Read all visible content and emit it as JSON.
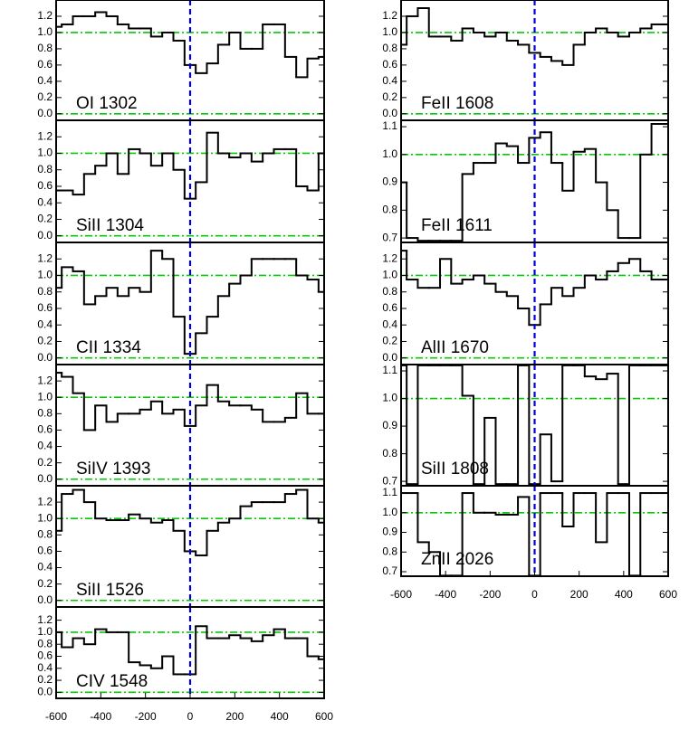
{
  "chart_data": [
    {
      "type": "line",
      "label": "OI 1302",
      "x": [
        -600,
        -550,
        -500,
        -450,
        -400,
        -350,
        -300,
        -250,
        -200,
        -150,
        -100,
        -50,
        0,
        50,
        100,
        150,
        200,
        250,
        300,
        350,
        400,
        450,
        500,
        550,
        600
      ],
      "values": [
        1.07,
        1.1,
        1.2,
        1.2,
        1.25,
        1.2,
        1.1,
        1.05,
        1.05,
        0.95,
        1.0,
        0.9,
        0.6,
        0.5,
        0.62,
        0.85,
        1.0,
        0.8,
        0.8,
        1.1,
        1.1,
        0.7,
        0.45,
        0.68,
        0.7
      ],
      "color": "#000000",
      "xlim": [
        -600,
        600
      ],
      "ylim": [
        -0.08,
        1.4
      ],
      "yticks": [
        {
          "value": 0,
          "label": "0.0"
        },
        0.2,
        0.4,
        0.6,
        0.8,
        {
          "value": 1,
          "label": "1.0"
        },
        1.2
      ],
      "hlines": [
        0,
        1
      ],
      "hline_color": "#00cc00",
      "vline": 0,
      "vline_color": "#0000dd"
    },
    {
      "type": "line",
      "label": "SiII 1304",
      "x": [
        -600,
        -550,
        -500,
        -450,
        -400,
        -350,
        -300,
        -250,
        -200,
        -150,
        -100,
        -50,
        0,
        50,
        100,
        150,
        200,
        250,
        300,
        350,
        400,
        450,
        500,
        550,
        600
      ],
      "values": [
        0.55,
        0.55,
        0.5,
        0.75,
        0.85,
        1.0,
        0.75,
        1.05,
        1.0,
        0.85,
        1.0,
        0.8,
        0.45,
        0.65,
        1.25,
        1.0,
        0.95,
        1.0,
        0.9,
        1.0,
        1.05,
        1.05,
        0.6,
        0.55,
        1.0
      ],
      "color": "#000000",
      "xlim": [
        -600,
        600
      ],
      "ylim": [
        -0.08,
        1.4
      ],
      "yticks": [
        {
          "value": 0,
          "label": "0.0"
        },
        0.2,
        0.4,
        0.6,
        0.8,
        {
          "value": 1,
          "label": "1.0"
        },
        1.2
      ],
      "hlines": [
        0,
        1
      ],
      "hline_color": "#00cc00",
      "vline": 0,
      "vline_color": "#0000dd"
    },
    {
      "type": "line",
      "label": "CII 1334",
      "x": [
        -600,
        -550,
        -500,
        -450,
        -400,
        -350,
        -300,
        -250,
        -200,
        -150,
        -100,
        -50,
        0,
        50,
        100,
        150,
        200,
        250,
        300,
        350,
        400,
        450,
        500,
        550,
        600
      ],
      "values": [
        0.85,
        1.1,
        1.05,
        0.65,
        0.75,
        0.85,
        0.75,
        0.85,
        0.8,
        1.3,
        1.2,
        0.5,
        0.05,
        0.3,
        0.5,
        0.75,
        0.9,
        1.0,
        1.2,
        1.2,
        1.2,
        1.2,
        1.0,
        0.95,
        0.8
      ],
      "color": "#000000",
      "xlim": [
        -600,
        600
      ],
      "ylim": [
        -0.08,
        1.4
      ],
      "yticks": [
        {
          "value": 0,
          "label": "0.0"
        },
        0.2,
        0.4,
        0.6,
        0.8,
        {
          "value": 1,
          "label": "1.0"
        },
        1.2
      ],
      "hlines": [
        0,
        1
      ],
      "hline_color": "#00cc00",
      "vline": 0,
      "vline_color": "#0000dd"
    },
    {
      "type": "line",
      "label": "SiIV 1393",
      "x": [
        -600,
        -550,
        -500,
        -450,
        -400,
        -350,
        -300,
        -250,
        -200,
        -150,
        -100,
        -50,
        0,
        50,
        100,
        150,
        200,
        250,
        300,
        350,
        400,
        450,
        500,
        550,
        600
      ],
      "values": [
        1.3,
        1.25,
        1.05,
        0.6,
        0.9,
        0.7,
        0.8,
        0.8,
        0.85,
        0.95,
        0.8,
        0.85,
        0.65,
        0.9,
        1.15,
        0.95,
        0.9,
        0.9,
        0.85,
        0.7,
        0.7,
        0.75,
        1.05,
        0.8,
        0.8
      ],
      "color": "#000000",
      "xlim": [
        -600,
        600
      ],
      "ylim": [
        -0.08,
        1.4
      ],
      "yticks": [
        {
          "value": 0,
          "label": "0.0"
        },
        0.2,
        0.4,
        0.6,
        0.8,
        {
          "value": 1,
          "label": "1.0"
        },
        1.2
      ],
      "hlines": [
        0,
        1
      ],
      "hline_color": "#00cc00",
      "vline": 0,
      "vline_color": "#0000dd"
    },
    {
      "type": "line",
      "label": "SiII 1526",
      "x": [
        -600,
        -550,
        -500,
        -450,
        -400,
        -350,
        -300,
        -250,
        -200,
        -150,
        -100,
        -50,
        0,
        50,
        100,
        150,
        200,
        250,
        300,
        350,
        400,
        450,
        500,
        550,
        600
      ],
      "values": [
        0.85,
        1.3,
        1.35,
        1.2,
        1.0,
        0.98,
        0.98,
        1.05,
        1.0,
        0.95,
        0.98,
        0.85,
        0.6,
        0.55,
        0.85,
        0.95,
        1.0,
        1.15,
        1.2,
        1.2,
        1.2,
        1.3,
        1.35,
        1.0,
        0.95
      ],
      "color": "#000000",
      "xlim": [
        -600,
        600
      ],
      "ylim": [
        -0.08,
        1.4
      ],
      "yticks": [
        {
          "value": 0,
          "label": "0.0"
        },
        0.2,
        0.4,
        0.6,
        0.8,
        {
          "value": 1,
          "label": "1.0"
        },
        1.2
      ],
      "hlines": [
        0,
        1
      ],
      "hline_color": "#00cc00",
      "vline": 0,
      "vline_color": "#0000dd"
    },
    {
      "type": "line",
      "label": "CIV 1548",
      "x": [
        -600,
        -550,
        -500,
        -450,
        -400,
        -350,
        -300,
        -250,
        -200,
        -150,
        -100,
        -50,
        0,
        50,
        100,
        150,
        200,
        250,
        300,
        350,
        400,
        450,
        500,
        550,
        600
      ],
      "values": [
        1.0,
        0.75,
        0.9,
        0.8,
        1.05,
        1.0,
        1.0,
        0.5,
        0.45,
        0.4,
        0.6,
        0.3,
        0.3,
        1.1,
        0.9,
        0.9,
        0.95,
        0.9,
        0.85,
        0.95,
        1.05,
        0.9,
        0.9,
        0.6,
        0.55
      ],
      "color": "#000000",
      "xlim": [
        -600,
        600
      ],
      "ylim": [
        -0.1,
        1.42
      ],
      "yticks": [
        {
          "value": 0,
          "label": "0.0"
        },
        0.2,
        0.4,
        0.6,
        0.8,
        {
          "value": 1,
          "label": "1.0"
        },
        1.2
      ],
      "xticks": [
        -600,
        -400,
        -200,
        0,
        200,
        400,
        600
      ],
      "hlines": [
        0,
        1
      ],
      "hline_color": "#00cc00",
      "vline": 0,
      "vline_color": "#0000dd"
    },
    {
      "type": "line",
      "label": "FeII 1608",
      "x": [
        -600,
        -550,
        -500,
        -450,
        -400,
        -350,
        -300,
        -250,
        -200,
        -150,
        -100,
        -50,
        0,
        50,
        100,
        150,
        200,
        250,
        300,
        350,
        400,
        450,
        500,
        550,
        600
      ],
      "values": [
        0.85,
        1.2,
        1.3,
        0.95,
        0.95,
        0.9,
        1.05,
        1.0,
        0.95,
        1.0,
        0.9,
        0.85,
        0.75,
        0.7,
        0.65,
        0.6,
        0.85,
        1.0,
        1.05,
        1.0,
        0.95,
        1.0,
        1.05,
        1.1,
        1.1
      ],
      "color": "#000000",
      "xlim": [
        -600,
        600
      ],
      "ylim": [
        -0.08,
        1.4
      ],
      "yticks": [
        {
          "value": 0,
          "label": "0.0"
        },
        0.2,
        0.4,
        0.6,
        0.8,
        {
          "value": 1,
          "label": "1.0"
        },
        1.2
      ],
      "hlines": [
        0,
        1
      ],
      "hline_color": "#00cc00",
      "vline": 0,
      "vline_color": "#0000dd"
    },
    {
      "type": "line",
      "label": "FeII 1611",
      "x": [
        -600,
        -550,
        -500,
        -450,
        -400,
        -350,
        -300,
        -250,
        -200,
        -150,
        -100,
        -50,
        0,
        50,
        100,
        150,
        200,
        250,
        300,
        350,
        400,
        450,
        500,
        550,
        600
      ],
      "values": [
        0.9,
        0.7,
        0.69,
        0.69,
        0.69,
        0.69,
        0.93,
        0.97,
        0.97,
        1.04,
        1.03,
        0.97,
        1.06,
        1.08,
        0.97,
        0.87,
        1.01,
        1.02,
        0.9,
        0.8,
        0.7,
        0.7,
        1.0,
        1.11,
        1.11
      ],
      "color": "#000000",
      "xlim": [
        -600,
        600
      ],
      "ylim": [
        0.684,
        1.123
      ],
      "yticks": [
        0.7,
        0.8,
        0.9,
        {
          "value": 1,
          "label": "1.0"
        },
        1.1
      ],
      "hlines": [
        1
      ],
      "hline_color": "#00cc00",
      "vline": 0,
      "vline_color": "#0000dd"
    },
    {
      "type": "line",
      "label": "AlII 1670",
      "x": [
        -600,
        -550,
        -500,
        -450,
        -400,
        -350,
        -300,
        -250,
        -200,
        -150,
        -100,
        -50,
        0,
        50,
        100,
        150,
        200,
        250,
        300,
        350,
        400,
        450,
        500,
        550,
        600
      ],
      "values": [
        1.3,
        0.95,
        0.85,
        0.85,
        1.2,
        0.9,
        0.95,
        1.0,
        0.9,
        0.8,
        0.75,
        0.6,
        0.4,
        0.65,
        0.85,
        0.75,
        0.85,
        1.0,
        0.95,
        1.05,
        1.15,
        1.2,
        1.05,
        0.95,
        0.95
      ],
      "color": "#000000",
      "xlim": [
        -600,
        600
      ],
      "ylim": [
        -0.08,
        1.4
      ],
      "yticks": [
        {
          "value": 0,
          "label": "0.0"
        },
        0.2,
        0.4,
        0.6,
        0.8,
        {
          "value": 1,
          "label": "1.0"
        },
        1.2
      ],
      "hlines": [
        0,
        1
      ],
      "hline_color": "#00cc00",
      "vline": 0,
      "vline_color": "#0000dd"
    },
    {
      "type": "line",
      "label": "SiII 1808",
      "x": [
        -600,
        -550,
        -500,
        -450,
        -400,
        -350,
        -300,
        -250,
        -200,
        -150,
        -100,
        -50,
        0,
        50,
        100,
        150,
        200,
        250,
        300,
        350,
        400,
        450,
        500,
        550,
        600
      ],
      "values": [
        1.12,
        0.69,
        1.12,
        1.12,
        1.12,
        1.12,
        1.01,
        0.69,
        0.93,
        0.69,
        0.69,
        1.12,
        0.69,
        0.87,
        0.7,
        1.12,
        1.12,
        1.08,
        1.07,
        1.09,
        0.69,
        1.12,
        1.12,
        1.12,
        1.12
      ],
      "color": "#000000",
      "xlim": [
        -600,
        600
      ],
      "ylim": [
        0.684,
        1.123
      ],
      "yticks": [
        0.7,
        0.8,
        0.9,
        {
          "value": 1,
          "label": "1.0"
        },
        1.1
      ],
      "hlines": [
        1
      ],
      "hline_color": "#00cc00",
      "vline": 0,
      "vline_color": "#0000dd"
    },
    {
      "type": "line",
      "label": "ZnII 2026",
      "x": [
        -600,
        -550,
        -500,
        -450,
        -400,
        -350,
        -300,
        -250,
        -200,
        -150,
        -100,
        -50,
        0,
        50,
        100,
        150,
        200,
        250,
        300,
        350,
        400,
        450,
        500,
        550,
        600
      ],
      "values": [
        1.1,
        1.1,
        0.85,
        0.8,
        0.68,
        0.68,
        1.1,
        1.0,
        1.0,
        0.99,
        0.99,
        1.08,
        0.68,
        1.1,
        1.1,
        0.93,
        1.1,
        1.1,
        0.85,
        1.1,
        1.1,
        0.68,
        1.1,
        1.1,
        1.1
      ],
      "color": "#000000",
      "xlim": [
        -600,
        600
      ],
      "ylim": [
        0.677,
        1.137
      ],
      "yticks": [
        0.7,
        0.8,
        0.9,
        {
          "value": 1,
          "label": "1.0"
        },
        1.1
      ],
      "xticks": [
        -600,
        -400,
        -200,
        0,
        200,
        400,
        600
      ],
      "hlines": [
        1
      ],
      "hline_color": "#00cc00",
      "vline": 0,
      "vline_color": "#0000dd"
    }
  ]
}
